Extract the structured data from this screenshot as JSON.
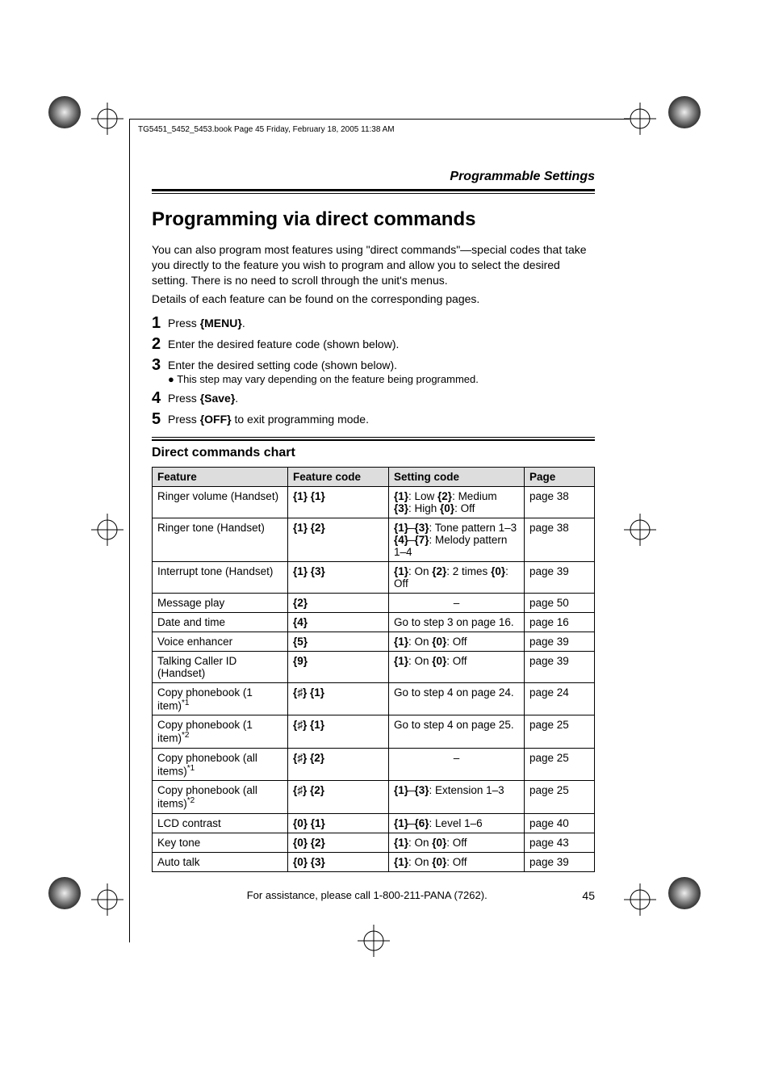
{
  "header_line": "TG5451_5452_5453.book  Page 45  Friday, February 18, 2005  11:38 AM",
  "section_header": "Programmable Settings",
  "title": "Programming via direct commands",
  "intro_para": "You can also program most features using \"direct commands\"—special codes that take you directly to the feature you wish to program and allow you to select the desired setting. There is no need to scroll through the unit's menus.",
  "intro_para2": "Details of each feature can be found on the corresponding pages.",
  "steps": {
    "s1_pre": "Press ",
    "s1_key": "{MENU}",
    "s1_post": ".",
    "s2": "Enter the desired feature code (shown below).",
    "s3": "Enter the desired setting code (shown below).",
    "s3_sub": "This step may vary depending on the feature being programmed.",
    "s4_pre": "Press ",
    "s4_key": "{Save}",
    "s4_post": ".",
    "s5_pre": "Press ",
    "s5_key": "{OFF}",
    "s5_post": " to exit programming mode."
  },
  "chart_title": "Direct commands chart",
  "columns": {
    "feature": "Feature",
    "fcode": "Feature code",
    "scode": "Setting code",
    "page": "Page"
  },
  "rows": [
    {
      "feature": "Ringer volume (Handset)",
      "fcode": "{1} {1}",
      "scode": "{1}: Low {2}: Medium\n{3}: High {0}: Off",
      "page": "page 38"
    },
    {
      "feature": "Ringer tone (Handset)",
      "fcode": "{1} {2}",
      "scode": "{1}–{3}: Tone pattern 1–3\n{4}–{7}: Melody pattern 1–4",
      "page": "page 38"
    },
    {
      "feature": "Interrupt tone (Handset)",
      "fcode": "{1} {3}",
      "scode": "{1}: On {2}: 2 times {0}: Off",
      "page": "page 39"
    },
    {
      "feature": "Message play",
      "fcode": "{2}",
      "scode": "–",
      "center": true,
      "page": "page 50"
    },
    {
      "feature": "Date and time",
      "fcode": "{4}",
      "scode": "Go to step 3 on page 16.",
      "page": "page 16"
    },
    {
      "feature": "Voice enhancer",
      "fcode": "{5}",
      "scode": "{1}: On {0}: Off",
      "page": "page 39"
    },
    {
      "feature": "Talking Caller ID (Handset)",
      "fcode": "{9}",
      "scode": "{1}: On {0}: Off",
      "page": "page 39"
    },
    {
      "feature": "Copy phonebook (1 item)",
      "sup": "*1",
      "fcode": "{♯} {1}",
      "scode": "Go to step 4 on page 24.",
      "page": "page 24"
    },
    {
      "feature": "Copy phonebook (1 item)",
      "sup": "*2",
      "fcode": "{♯} {1}",
      "scode": "Go to step 4 on page 25.",
      "page": "page 25"
    },
    {
      "feature": "Copy phonebook (all items)",
      "sup": "*1",
      "fcode": "{♯} {2}",
      "scode": "–",
      "center": true,
      "page": "page 25"
    },
    {
      "feature": "Copy phonebook (all items)",
      "sup": "*2",
      "fcode": "{♯} {2}",
      "scode": "{1}–{3}: Extension 1–3",
      "page": "page 25"
    },
    {
      "feature": "LCD contrast",
      "fcode": "{0} {1}",
      "scode": "{1}–{6}: Level 1–6",
      "page": "page 40"
    },
    {
      "feature": "Key tone",
      "fcode": "{0} {2}",
      "scode": "{1}: On {0}: Off",
      "page": "page 43"
    },
    {
      "feature": "Auto talk",
      "fcode": "{0} {3}",
      "scode": "{1}: On {0}: Off",
      "page": "page 39"
    }
  ],
  "footer_text": "For assistance, please call 1-800-211-PANA (7262).",
  "page_number": "45"
}
